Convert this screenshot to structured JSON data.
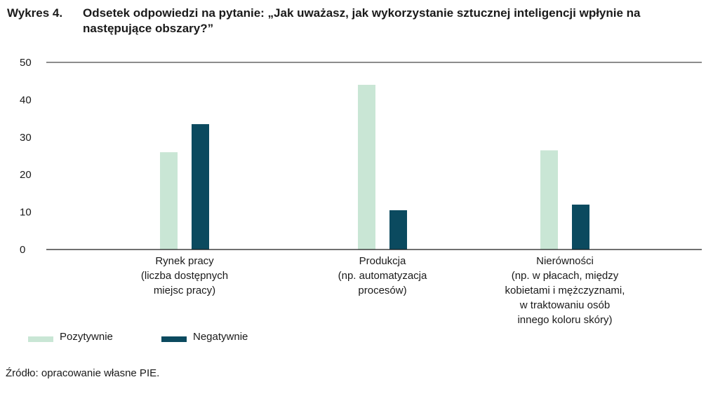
{
  "header": {
    "figure_number": "Wykres 4.",
    "title": "Odsetek odpowiedzi na pytanie: „Jak uważasz, jak wykorzystanie sztucznej inteligencji wpłynie na następujące obszary?”"
  },
  "chart_data": {
    "type": "bar",
    "categories": [
      [
        "Rynek pracy",
        "(liczba dostępnych",
        "miejsc pracy)"
      ],
      [
        "Produkcja",
        "(np. automatyzacja",
        "procesów)"
      ],
      [
        "Nierówności",
        "(np. w płacach, między",
        "kobietami i mężczyznami,",
        "w traktowaniu osób",
        "innego koloru skóry)"
      ]
    ],
    "series": [
      {
        "name": "Pozytywnie",
        "values": [
          26,
          44,
          26.5
        ],
        "color": "#c9e6d5"
      },
      {
        "name": "Negatywnie",
        "values": [
          33.5,
          10.5,
          12
        ],
        "color": "#0b4a5f"
      }
    ],
    "ylim": [
      0,
      50
    ],
    "yticks": [
      0,
      10,
      20,
      30,
      40,
      50
    ],
    "grid": false,
    "legend_position": "bottom-left"
  },
  "footer": {
    "source": "Źródło: opracowanie własne PIE."
  }
}
